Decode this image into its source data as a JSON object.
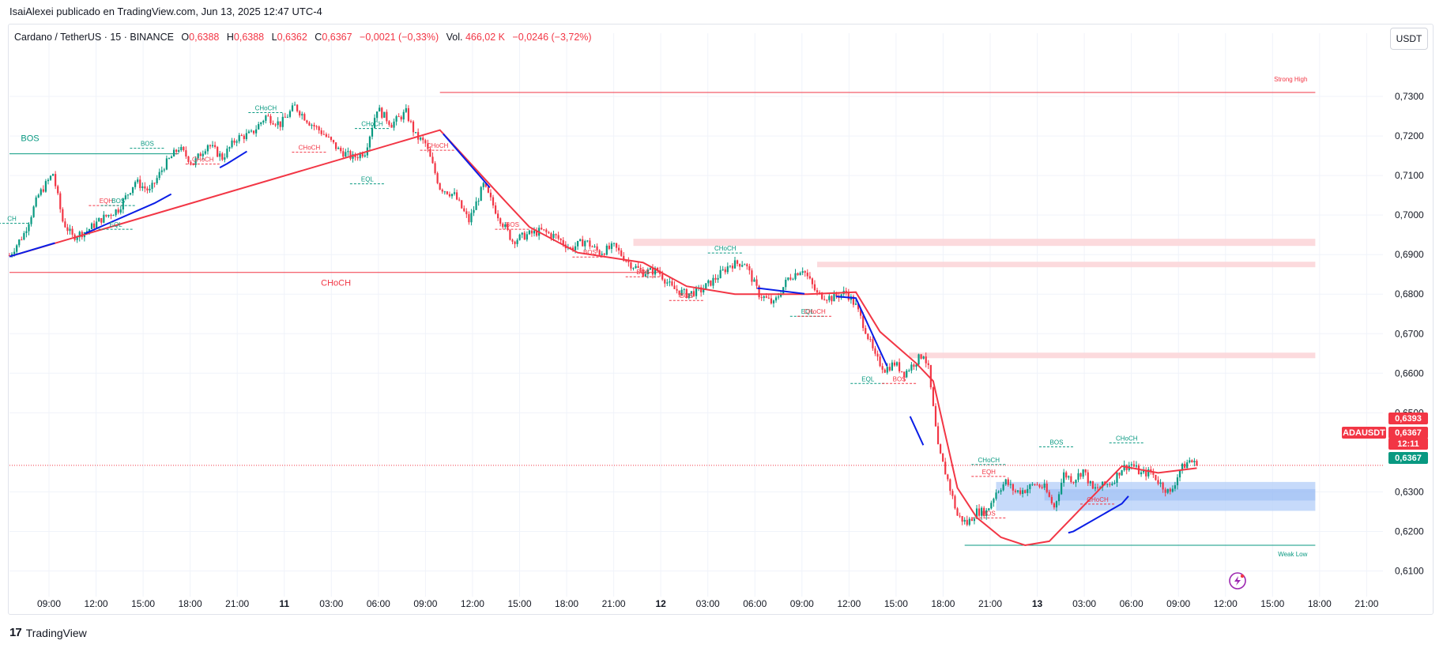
{
  "header": {
    "publisher_line": "IsaiAlexei publicado en TradingView.com, Jun 13, 2025 12:47 UTC-4"
  },
  "legend": {
    "symbol": "Cardano / TetherUS · 15 · BINANCE",
    "o_label": "O",
    "o_value": "0,6388",
    "h_label": "H",
    "h_value": "0,6388",
    "l_label": "L",
    "l_value": "0,6362",
    "c_label": "C",
    "c_value": "0,6367",
    "change": "−0,0021 (−0,33%)",
    "vol_label": "Vol.",
    "vol_value": "466,02 K",
    "vol_change": "−0,0246 (−3,72%)"
  },
  "currency_button": "USDT",
  "footer": {
    "brand": "TradingView",
    "brand_mark": "17"
  },
  "colors": {
    "bull": "#089981",
    "bear": "#f23645",
    "ma_blue": "#0a1ee6",
    "ma_red": "#f23645",
    "demand_zone": "#b3cdf8",
    "supply_zone": "#fcd4d7",
    "grid": "#f0f3fa"
  },
  "chart_data": {
    "type": "candlestick",
    "symbol": "ADAUSDT",
    "interval": "15",
    "y_axis": {
      "ticks": [
        "0,7300",
        "0,7200",
        "0,7100",
        "0,7000",
        "0,6900",
        "0,6800",
        "0,6700",
        "0,6600",
        "0,6500",
        "0,6300",
        "0,6200",
        "0,6100"
      ],
      "tick_values": [
        0.73,
        0.72,
        0.71,
        0.7,
        0.69,
        0.68,
        0.67,
        0.66,
        0.65,
        0.63,
        0.62,
        0.61
      ],
      "range": [
        0.6035,
        0.742
      ]
    },
    "x_axis": {
      "ticks": [
        "09:00",
        "12:00",
        "15:00",
        "18:00",
        "21:00",
        "11",
        "03:00",
        "06:00",
        "09:00",
        "12:00",
        "15:00",
        "18:00",
        "21:00",
        "12",
        "03:00",
        "06:00",
        "09:00",
        "12:00",
        "15:00",
        "18:00",
        "21:00",
        "13",
        "03:00",
        "06:00",
        "09:00",
        "12:00",
        "15:00",
        "18:00",
        "21:00"
      ]
    },
    "price_labels": {
      "high_tag": "0,6393",
      "symbol_tag": "ADAUSDT",
      "last_price": "0,6367",
      "countdown": "12:11",
      "current_line": "0,6367"
    },
    "last_price_value": 0.6367,
    "path_points": [
      [
        0,
        0.6898
      ],
      [
        6,
        0.6953
      ],
      [
        12,
        0.705
      ],
      [
        18,
        0.7105
      ],
      [
        22,
        0.6985
      ],
      [
        26,
        0.6945
      ],
      [
        32,
        0.696
      ],
      [
        38,
        0.699
      ],
      [
        45,
        0.7015
      ],
      [
        52,
        0.7085
      ],
      [
        58,
        0.706
      ],
      [
        64,
        0.7125
      ],
      [
        70,
        0.717
      ],
      [
        76,
        0.713
      ],
      [
        82,
        0.718
      ],
      [
        88,
        0.7145
      ],
      [
        94,
        0.7195
      ],
      [
        100,
        0.7205
      ],
      [
        106,
        0.725
      ],
      [
        112,
        0.723
      ],
      [
        118,
        0.7275
      ],
      [
        124,
        0.7235
      ],
      [
        130,
        0.7205
      ],
      [
        136,
        0.7165
      ],
      [
        142,
        0.7145
      ],
      [
        147,
        0.716
      ],
      [
        152,
        0.727
      ],
      [
        158,
        0.723
      ],
      [
        164,
        0.726
      ],
      [
        168,
        0.72
      ],
      [
        172,
        0.718
      ],
      [
        178,
        0.707
      ],
      [
        184,
        0.705
      ],
      [
        190,
        0.6985
      ],
      [
        196,
        0.7075
      ],
      [
        202,
        0.7
      ],
      [
        208,
        0.6935
      ],
      [
        214,
        0.695
      ],
      [
        220,
        0.696
      ],
      [
        226,
        0.6945
      ],
      [
        232,
        0.6915
      ],
      [
        238,
        0.6935
      ],
      [
        244,
        0.6905
      ],
      [
        250,
        0.692
      ],
      [
        256,
        0.688
      ],
      [
        262,
        0.6855
      ],
      [
        268,
        0.686
      ],
      [
        274,
        0.6815
      ],
      [
        280,
        0.68
      ],
      [
        286,
        0.681
      ],
      [
        292,
        0.684
      ],
      [
        298,
        0.6875
      ],
      [
        304,
        0.688
      ],
      [
        310,
        0.68
      ],
      [
        316,
        0.6775
      ],
      [
        322,
        0.684
      ],
      [
        328,
        0.6865
      ],
      [
        334,
        0.68
      ],
      [
        340,
        0.679
      ],
      [
        346,
        0.6805
      ],
      [
        350,
        0.677
      ],
      [
        354,
        0.671
      ],
      [
        358,
        0.664
      ],
      [
        362,
        0.661
      ],
      [
        366,
        0.6625
      ],
      [
        370,
        0.66
      ],
      [
        374,
        0.6625
      ],
      [
        378,
        0.665
      ],
      [
        380,
        0.661
      ],
      [
        384,
        0.641
      ],
      [
        388,
        0.633
      ],
      [
        392,
        0.624
      ],
      [
        396,
        0.622
      ],
      [
        400,
        0.625
      ],
      [
        404,
        0.625
      ],
      [
        408,
        0.63
      ],
      [
        412,
        0.6325
      ],
      [
        416,
        0.63
      ],
      [
        420,
        0.6305
      ],
      [
        424,
        0.632
      ],
      [
        428,
        0.631
      ],
      [
        432,
        0.626
      ],
      [
        436,
        0.6345
      ],
      [
        440,
        0.633
      ],
      [
        444,
        0.6355
      ],
      [
        448,
        0.6305
      ],
      [
        452,
        0.6315
      ],
      [
        456,
        0.6325
      ],
      [
        460,
        0.636
      ],
      [
        464,
        0.637
      ],
      [
        468,
        0.6345
      ],
      [
        472,
        0.635
      ],
      [
        476,
        0.632
      ],
      [
        480,
        0.6295
      ],
      [
        484,
        0.6355
      ],
      [
        488,
        0.638
      ],
      [
        491,
        0.6367
      ]
    ],
    "ma_blue": [
      [
        0,
        0.6895
      ],
      [
        30,
        0.695
      ],
      [
        60,
        0.703
      ],
      [
        90,
        0.713
      ],
      [
        115,
        0.7225
      ],
      [
        140,
        0.7225
      ],
      [
        160,
        0.7225
      ],
      [
        178,
        0.7215
      ],
      [
        200,
        0.706
      ],
      [
        230,
        0.69
      ],
      [
        260,
        0.688
      ],
      [
        290,
        0.68
      ],
      [
        310,
        0.6815
      ],
      [
        330,
        0.68
      ],
      [
        350,
        0.679
      ],
      [
        395,
        0.619
      ],
      [
        420,
        0.6165
      ],
      [
        440,
        0.62
      ],
      [
        460,
        0.627
      ],
      [
        470,
        0.634
      ],
      [
        480,
        0.6355
      ],
      [
        491,
        0.6365
      ]
    ],
    "ma_red": [
      [
        0,
        0.6895
      ],
      [
        178,
        0.7215
      ],
      [
        205,
        0.7035
      ],
      [
        215,
        0.697
      ],
      [
        235,
        0.6905
      ],
      [
        262,
        0.688
      ],
      [
        280,
        0.682
      ],
      [
        300,
        0.68
      ],
      [
        330,
        0.68
      ],
      [
        350,
        0.6805
      ],
      [
        360,
        0.6705
      ],
      [
        375,
        0.6625
      ],
      [
        382,
        0.658
      ],
      [
        392,
        0.631
      ],
      [
        400,
        0.6235
      ],
      [
        410,
        0.6185
      ],
      [
        420,
        0.6165
      ],
      [
        430,
        0.6175
      ],
      [
        460,
        0.6365
      ],
      [
        475,
        0.6348
      ],
      [
        491,
        0.636
      ]
    ],
    "structure_lines": [
      {
        "label": "BOS",
        "price": 0.7155,
        "from": 0,
        "to": 70,
        "kind": "bull"
      },
      {
        "label": "CHoCH",
        "price": 0.6855,
        "from": 0,
        "to": 270,
        "kind": "bear"
      },
      {
        "label": "Strong High",
        "price": 0.731,
        "from": 178,
        "to": 540,
        "kind": "bear"
      },
      {
        "label": "Weak Low",
        "price": 0.6165,
        "from": 395,
        "to": 540,
        "kind": "bull"
      }
    ],
    "small_labels": [
      {
        "text": "CHoCH",
        "x": 106,
        "price": 0.7265,
        "kind": "bull"
      },
      {
        "text": "CHoCH",
        "x": 124,
        "price": 0.7165,
        "kind": "bear"
      },
      {
        "text": "BOS",
        "x": 57,
        "price": 0.7175,
        "kind": "bull"
      },
      {
        "text": "CHoCH",
        "x": 80,
        "price": 0.7135,
        "kind": "bear"
      },
      {
        "text": "EQH",
        "x": 40,
        "price": 0.703,
        "kind": "bear"
      },
      {
        "text": "BOS",
        "x": 45,
        "price": 0.703,
        "kind": "bull"
      },
      {
        "text": "EQL",
        "x": 44,
        "price": 0.697,
        "kind": "bull"
      },
      {
        "text": "CHoCH",
        "x": 150,
        "price": 0.7225,
        "kind": "bull"
      },
      {
        "text": "EQL",
        "x": 148,
        "price": 0.7085,
        "kind": "bull"
      },
      {
        "text": "CHoCH",
        "x": 177,
        "price": 0.717,
        "kind": "bear"
      },
      {
        "text": "BOS",
        "x": 208,
        "price": 0.697,
        "kind": "bear"
      },
      {
        "text": "BOS",
        "x": 240,
        "price": 0.69,
        "kind": "bear"
      },
      {
        "text": "CHoCH",
        "x": 296,
        "price": 0.691,
        "kind": "bull"
      },
      {
        "text": "BOS",
        "x": 262,
        "price": 0.685,
        "kind": "bear"
      },
      {
        "text": "BOS",
        "x": 280,
        "price": 0.679,
        "kind": "bear"
      },
      {
        "text": "EQL",
        "x": 330,
        "price": 0.675,
        "kind": "bull"
      },
      {
        "text": "CHoCH",
        "x": 333,
        "price": 0.675,
        "kind": "bear"
      },
      {
        "text": "EQL",
        "x": 355,
        "price": 0.658,
        "kind": "bull"
      },
      {
        "text": "BOS",
        "x": 368,
        "price": 0.658,
        "kind": "bear"
      },
      {
        "text": "CHoCH",
        "x": 405,
        "price": 0.6375,
        "kind": "bull"
      },
      {
        "text": "EQH",
        "x": 405,
        "price": 0.6345,
        "kind": "bear"
      },
      {
        "text": "BOS",
        "x": 405,
        "price": 0.624,
        "kind": "bear"
      },
      {
        "text": "BOS",
        "x": 433,
        "price": 0.642,
        "kind": "bull"
      },
      {
        "text": "CHoCH",
        "x": 462,
        "price": 0.643,
        "kind": "bull"
      },
      {
        "text": "CHoCH",
        "x": 450,
        "price": 0.6275,
        "kind": "bear"
      },
      {
        "text": "CH",
        "x": 1,
        "price": 0.6985,
        "kind": "bull"
      }
    ],
    "zones": [
      {
        "kind": "supply",
        "top": 0.694,
        "bottom": 0.6922,
        "from": 258,
        "to": 540
      },
      {
        "kind": "supply",
        "top": 0.6882,
        "bottom": 0.6868,
        "from": 334,
        "to": 540
      },
      {
        "kind": "supply",
        "top": 0.6652,
        "bottom": 0.6638,
        "from": 372,
        "to": 540
      },
      {
        "kind": "demand",
        "top": 0.6325,
        "bottom": 0.6252,
        "from": 408,
        "to": 540
      }
    ]
  }
}
